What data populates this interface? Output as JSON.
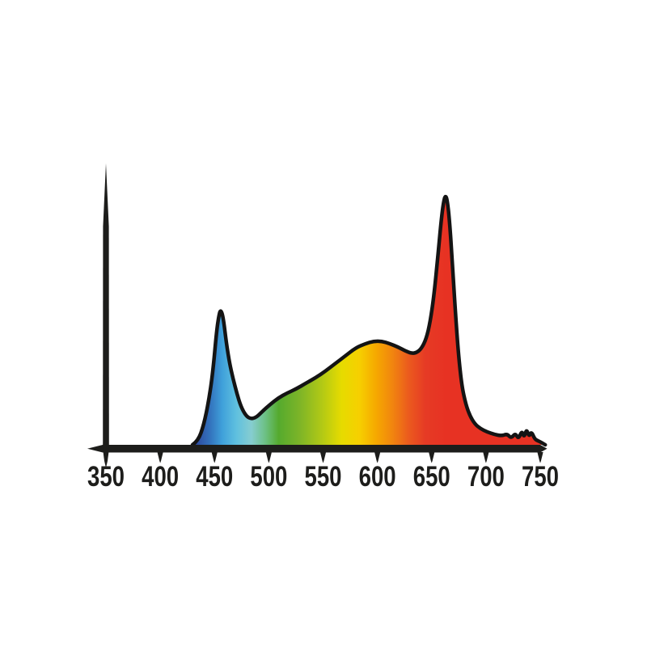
{
  "chart_data": {
    "type": "area",
    "title": "",
    "xlabel": "",
    "ylabel": "",
    "xlim": [
      350,
      750
    ],
    "grid": false,
    "legend": false,
    "x_ticks": [
      "350",
      "400",
      "450",
      "500",
      "550",
      "600",
      "650",
      "700",
      "750"
    ],
    "axis_color": "#1d1d1b",
    "outline_color": "#141414",
    "points": [
      [
        429.7,
        0.0
      ],
      [
        434.9,
        0.016
      ],
      [
        440.1,
        0.081
      ],
      [
        444.6,
        0.175
      ],
      [
        448.3,
        0.286
      ],
      [
        452.0,
        0.461
      ],
      [
        454.3,
        0.526
      ],
      [
        455.8,
        0.542
      ],
      [
        458.0,
        0.513
      ],
      [
        461.0,
        0.406
      ],
      [
        464.0,
        0.325
      ],
      [
        467.0,
        0.266
      ],
      [
        470.7,
        0.205
      ],
      [
        474.4,
        0.153
      ],
      [
        478.9,
        0.117
      ],
      [
        483.3,
        0.104
      ],
      [
        488.6,
        0.11
      ],
      [
        494.5,
        0.136
      ],
      [
        501.2,
        0.162
      ],
      [
        508.7,
        0.188
      ],
      [
        516.9,
        0.208
      ],
      [
        525.0,
        0.224
      ],
      [
        534.0,
        0.247
      ],
      [
        543.0,
        0.269
      ],
      [
        551.9,
        0.295
      ],
      [
        560.8,
        0.325
      ],
      [
        570.5,
        0.357
      ],
      [
        580.2,
        0.39
      ],
      [
        589.1,
        0.406
      ],
      [
        596.6,
        0.416
      ],
      [
        604.0,
        0.416
      ],
      [
        611.5,
        0.406
      ],
      [
        618.9,
        0.393
      ],
      [
        625.6,
        0.377
      ],
      [
        631.6,
        0.367
      ],
      [
        636.1,
        0.37
      ],
      [
        640.5,
        0.386
      ],
      [
        645.0,
        0.425
      ],
      [
        648.7,
        0.494
      ],
      [
        652.4,
        0.61
      ],
      [
        656.2,
        0.779
      ],
      [
        659.1,
        0.916
      ],
      [
        661.4,
        0.987
      ],
      [
        662.9,
        1.0
      ],
      [
        664.4,
        0.981
      ],
      [
        666.6,
        0.893
      ],
      [
        668.8,
        0.747
      ],
      [
        671.8,
        0.536
      ],
      [
        674.8,
        0.357
      ],
      [
        677.8,
        0.234
      ],
      [
        681.5,
        0.162
      ],
      [
        685.2,
        0.117
      ],
      [
        689.7,
        0.084
      ],
      [
        694.9,
        0.065
      ],
      [
        700.9,
        0.052
      ],
      [
        707.6,
        0.042
      ],
      [
        714.3,
        0.036
      ],
      [
        719.5,
        0.044
      ],
      [
        723.2,
        0.026
      ],
      [
        727.0,
        0.047
      ],
      [
        730.0,
        0.023
      ],
      [
        733.0,
        0.057
      ],
      [
        735.2,
        0.029
      ],
      [
        737.4,
        0.064
      ],
      [
        739.7,
        0.032
      ],
      [
        741.9,
        0.054
      ],
      [
        744.9,
        0.023
      ],
      [
        747.9,
        0.016
      ],
      [
        750.9,
        0.01
      ],
      [
        754.6,
        0.0
      ]
    ],
    "gradient_stops": [
      [
        429.7,
        "#2c3f97"
      ],
      [
        446.0,
        "#3373bd"
      ],
      [
        457.0,
        "#3fa0da"
      ],
      [
        470.0,
        "#5fc0df"
      ],
      [
        484.0,
        "#86cdd0"
      ],
      [
        497.0,
        "#6cc083"
      ],
      [
        509.0,
        "#55aa2e"
      ],
      [
        528.0,
        "#7cb428"
      ],
      [
        549.0,
        "#b2c915"
      ],
      [
        567.0,
        "#e6db00"
      ],
      [
        583.0,
        "#f6d000"
      ],
      [
        599.0,
        "#f6a800"
      ],
      [
        614.0,
        "#f1850f"
      ],
      [
        629.0,
        "#eb5a1e"
      ],
      [
        644.0,
        "#e63b25"
      ],
      [
        663.0,
        "#e73223"
      ],
      [
        754.6,
        "#e73223"
      ]
    ]
  }
}
